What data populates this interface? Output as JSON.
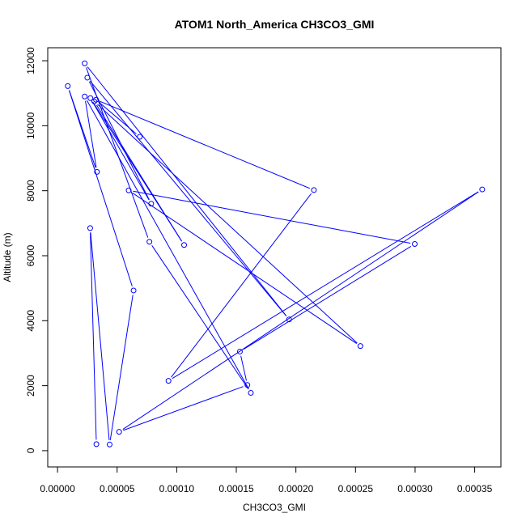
{
  "chart_data": {
    "type": "line",
    "title": "ATOM1 North_America CH3CO3_GMI",
    "xlabel": "CH3CO3_GMI",
    "ylabel": "Altitude (m)",
    "xlim": [
      -8.2e-06,
      0.000372
    ],
    "ylim": [
      -500,
      12400
    ],
    "x_ticks": [
      "0.00000",
      "0.00005",
      "0.00010",
      "0.00015",
      "0.00020",
      "0.00025",
      "0.00030",
      "0.00035"
    ],
    "x_tick_values": [
      0,
      5e-05,
      0.0001,
      0.00015,
      0.0002,
      0.00025,
      0.0003,
      0.00035
    ],
    "y_ticks": [
      "0",
      "2000",
      "4000",
      "6000",
      "8000",
      "10000",
      "12000"
    ],
    "y_tick_values": [
      0,
      2000,
      4000,
      6000,
      8000,
      10000,
      12000
    ],
    "grid": false,
    "series": [
      {
        "color": "#0000ff",
        "marker": "open-circle",
        "points": [
          [
            3.26e-05,
            200
          ],
          [
            2.74e-05,
            6850
          ],
          [
            4.37e-05,
            190
          ],
          [
            6.38e-05,
            4930
          ],
          [
            8.6e-06,
            11220
          ],
          [
            3.31e-05,
            8580
          ],
          [
            2.28e-05,
            10900
          ],
          [
            0.0001622,
            1780
          ],
          [
            7.71e-05,
            6430
          ],
          [
            2.28e-05,
            11920
          ],
          [
            0.0001943,
            4040
          ],
          [
            2.5e-05,
            11480
          ],
          [
            7.86e-05,
            7600
          ],
          [
            2.76e-05,
            10850
          ],
          [
            0.0001062,
            6330
          ],
          [
            3.08e-05,
            10750
          ],
          [
            0.0002541,
            3220
          ],
          [
            5.97e-05,
            8010
          ],
          [
            0.0002997,
            6360
          ],
          [
            0.000153,
            3050
          ],
          [
            0.0001593,
            2020
          ],
          [
            5.17e-05,
            580
          ],
          [
            0.0003563,
            8040
          ],
          [
            9.31e-05,
            2150
          ],
          [
            0.0002151,
            8020
          ],
          [
            3.23e-05,
            10800
          ],
          [
            6.9e-05,
            9660
          ]
        ]
      }
    ]
  }
}
